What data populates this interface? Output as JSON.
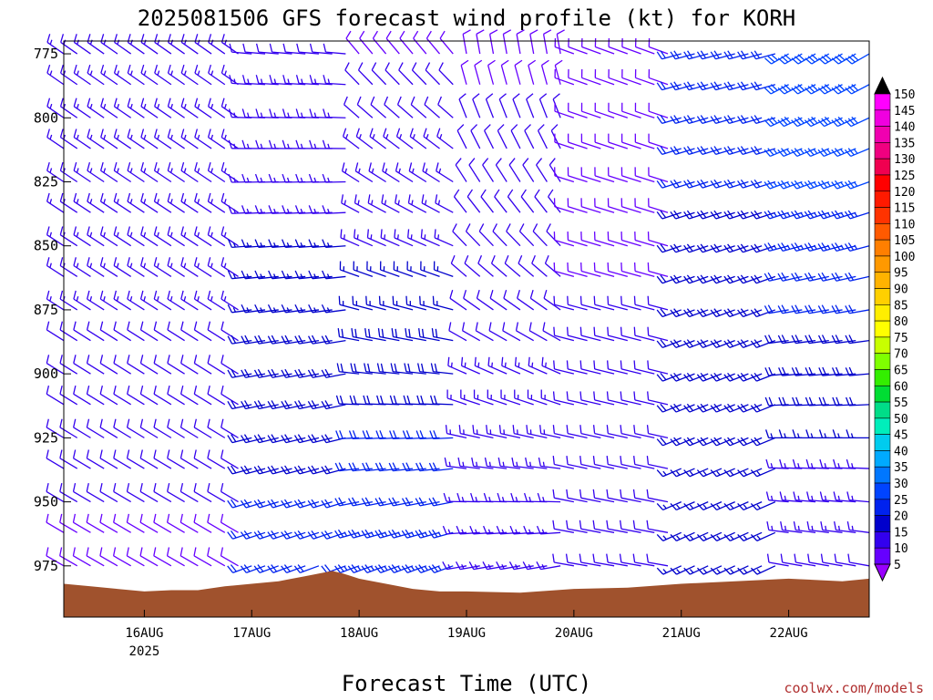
{
  "chart_data": {
    "type": "wind-barb time-height",
    "title": "2025081506 GFS forecast wind profile (kt) for KORH",
    "xlabel": "Forecast Time (UTC)",
    "credit": "coolwx.com/models",
    "y_ticks": [
      775,
      800,
      825,
      850,
      875,
      900,
      925,
      950,
      975
    ],
    "ylim": [
      995,
      770
    ],
    "x_start_day": 15.25,
    "x_end_day": 22.75,
    "x_ticks": [
      {
        "day": 16,
        "label": "16AUG",
        "sublabel": "2025"
      },
      {
        "day": 17,
        "label": "17AUG"
      },
      {
        "day": 18,
        "label": "18AUG"
      },
      {
        "day": 19,
        "label": "19AUG"
      },
      {
        "day": 20,
        "label": "20AUG"
      },
      {
        "day": 21,
        "label": "21AUG"
      },
      {
        "day": 22,
        "label": "22AUG"
      }
    ],
    "time_step_hours": 3,
    "barb_levels": [
      775,
      787,
      800,
      812,
      825,
      837,
      850,
      862,
      875,
      887,
      900,
      912,
      925,
      937,
      950,
      962,
      975
    ],
    "colorbar": {
      "labels": [
        150,
        145,
        140,
        135,
        130,
        125,
        120,
        115,
        110,
        105,
        100,
        95,
        90,
        85,
        80,
        75,
        70,
        65,
        60,
        55,
        50,
        45,
        40,
        35,
        30,
        25,
        20,
        15,
        10,
        5
      ],
      "colors": [
        "#ff00ff",
        "#f000e0",
        "#f000b0",
        "#f00080",
        "#f00050",
        "#ff0000",
        "#ff1a00",
        "#ff3300",
        "#ff5a00",
        "#ff7f00",
        "#ff9900",
        "#ffb300",
        "#ffd000",
        "#ffee00",
        "#ffff00",
        "#c8ff00",
        "#7fff00",
        "#33ee00",
        "#00dd33",
        "#00dd88",
        "#00eebb",
        "#00ccee",
        "#00aaff",
        "#0077ff",
        "#0044ff",
        "#0022ee",
        "#0000cc",
        "#3300ee",
        "#6600ff",
        "#9900ff"
      ]
    },
    "wind_sections": [
      {
        "from_day": 15.25,
        "to_day": 17.0,
        "upper_dir": 305,
        "upper_spd": 15,
        "lower_dir": 300,
        "lower_spd": 10
      },
      {
        "from_day": 17.0,
        "to_day": 18.0,
        "upper_dir": 275,
        "upper_spd": 12,
        "lower_dir": 250,
        "lower_spd": 22
      },
      {
        "from_day": 18.0,
        "to_day": 19.0,
        "upper_dir": 320,
        "upper_spd": 10,
        "lower_dir": 250,
        "lower_spd": 24
      },
      {
        "from_day": 19.0,
        "to_day": 20.0,
        "upper_dir": 350,
        "upper_spd": 10,
        "lower_dir": 260,
        "lower_spd": 14
      },
      {
        "from_day": 20.0,
        "to_day": 21.0,
        "upper_dir": 290,
        "upper_spd": 9,
        "lower_dir": 280,
        "lower_spd": 12
      },
      {
        "from_day": 21.0,
        "to_day": 22.0,
        "upper_dir": 255,
        "upper_spd": 22,
        "lower_dir": 245,
        "lower_spd": 16
      },
      {
        "from_day": 22.0,
        "to_day": 22.75,
        "upper_dir": 240,
        "upper_spd": 30,
        "lower_dir": 280,
        "lower_spd": 12
      }
    ],
    "surface_pressure": [
      {
        "day": 15.25,
        "p": 982
      },
      {
        "day": 15.5,
        "p": 983
      },
      {
        "day": 15.75,
        "p": 984
      },
      {
        "day": 16.0,
        "p": 985
      },
      {
        "day": 16.25,
        "p": 984.5
      },
      {
        "day": 16.5,
        "p": 984.5
      },
      {
        "day": 16.75,
        "p": 983
      },
      {
        "day": 17.0,
        "p": 982
      },
      {
        "day": 17.25,
        "p": 981
      },
      {
        "day": 17.5,
        "p": 979
      },
      {
        "day": 17.75,
        "p": 977
      },
      {
        "day": 17.85,
        "p": 978
      },
      {
        "day": 18.0,
        "p": 980
      },
      {
        "day": 18.25,
        "p": 982
      },
      {
        "day": 18.5,
        "p": 984
      },
      {
        "day": 18.75,
        "p": 985
      },
      {
        "day": 19.0,
        "p": 985
      },
      {
        "day": 19.5,
        "p": 985.5
      },
      {
        "day": 20.0,
        "p": 984
      },
      {
        "day": 20.5,
        "p": 983.5
      },
      {
        "day": 21.0,
        "p": 982
      },
      {
        "day": 21.5,
        "p": 981
      },
      {
        "day": 22.0,
        "p": 980
      },
      {
        "day": 22.5,
        "p": 981
      },
      {
        "day": 22.75,
        "p": 980
      }
    ],
    "terrain_color": "#a0522d",
    "grid": false
  }
}
